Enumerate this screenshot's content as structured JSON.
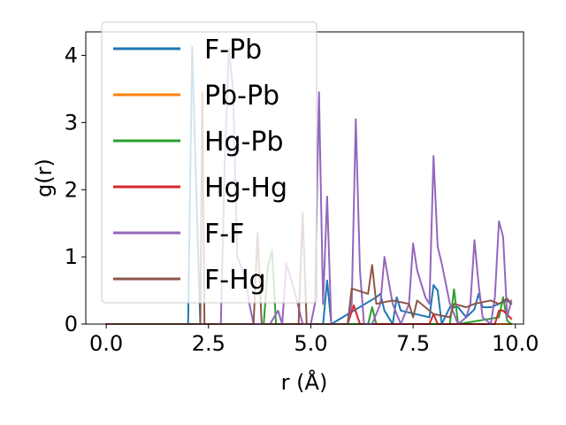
{
  "chart_data": {
    "type": "line",
    "title": "",
    "xlabel": "r (Å)",
    "ylabel": "g(r)",
    "xlim": [
      -0.5,
      10.2
    ],
    "ylim": [
      0,
      4.35
    ],
    "xticks": [
      0.0,
      2.5,
      5.0,
      7.5,
      10.0
    ],
    "xtick_labels": [
      "0.0",
      "2.5",
      "5.0",
      "7.5",
      "10.0"
    ],
    "yticks": [
      0,
      1,
      2,
      3,
      4
    ],
    "ytick_labels": [
      "0",
      "1",
      "2",
      "3",
      "4"
    ],
    "grid": false,
    "legend_position": "top-left",
    "series": [
      {
        "name": "F-Pb",
        "color": "#1f77b4",
        "x": [
          0.0,
          2.0,
          2.1,
          2.2,
          2.3,
          5.3,
          5.4,
          5.5,
          6.6,
          6.7,
          6.8,
          7.0,
          7.1,
          7.2,
          7.9,
          8.0,
          8.1,
          8.2,
          8.4,
          8.6,
          8.8,
          9.0,
          9.1,
          9.2,
          9.4,
          9.6,
          9.8,
          9.9
        ],
        "y": [
          0,
          0,
          4.13,
          2.0,
          0,
          0,
          0.65,
          0,
          0.4,
          0.45,
          0.2,
          0,
          0.4,
          0.2,
          0.1,
          0.58,
          0.5,
          0,
          0.25,
          0.25,
          0.1,
          0.22,
          0.45,
          0.25,
          0.25,
          0.3,
          0.35,
          0.3
        ]
      },
      {
        "name": "Pb-Pb",
        "color": "#ff7f0e",
        "x": [
          0.0,
          9.9
        ],
        "y": [
          0,
          0
        ]
      },
      {
        "name": "Hg-Pb",
        "color": "#2ca02c",
        "x": [
          0.0,
          3.85,
          3.95,
          4.05,
          4.15,
          6.4,
          6.5,
          6.6,
          8.4,
          8.5,
          8.6,
          9.6,
          9.7,
          9.8,
          9.9
        ],
        "y": [
          0,
          0,
          0.85,
          1.1,
          0,
          0,
          0.25,
          0,
          0,
          0.52,
          0,
          0.1,
          0.4,
          0.05,
          0
        ]
      },
      {
        "name": "Hg-Hg",
        "color": "#d62728",
        "x": [
          0.0,
          5.9,
          6.05,
          6.2,
          7.9,
          8.0,
          8.1,
          9.5,
          9.6,
          9.7,
          9.9
        ],
        "y": [
          0,
          0,
          0.28,
          0,
          0,
          0.15,
          0,
          0,
          0.2,
          0.2,
          0.08
        ]
      },
      {
        "name": "F-F",
        "color": "#9467bd",
        "x": [
          0.0,
          2.8,
          2.9,
          3.0,
          3.1,
          3.2,
          3.4,
          3.5,
          3.6,
          3.8,
          4.0,
          4.2,
          4.3,
          4.4,
          4.6,
          4.8,
          5.0,
          5.1,
          5.2,
          5.3,
          5.4,
          5.5,
          5.6,
          5.7,
          5.8,
          5.9,
          6.0,
          6.1,
          6.2,
          6.3,
          6.5,
          6.7,
          6.8,
          7.0,
          7.2,
          7.4,
          7.5,
          7.6,
          7.8,
          7.9,
          8.0,
          8.1,
          8.2,
          8.4,
          8.6,
          8.8,
          8.9,
          9.0,
          9.1,
          9.2,
          9.4,
          9.5,
          9.6,
          9.7,
          9.8,
          9.9
        ],
        "y": [
          0,
          0,
          2.5,
          4.1,
          3.5,
          1.0,
          0.7,
          0.3,
          0,
          0,
          0,
          0.2,
          0,
          0.9,
          0.5,
          0,
          0,
          0.3,
          3.45,
          0.3,
          1.9,
          0,
          0,
          0,
          0,
          0,
          0.3,
          3.05,
          0.8,
          0,
          0,
          0.3,
          1.0,
          0.3,
          0,
          0.3,
          1.2,
          0.8,
          0.4,
          0.3,
          2.5,
          1.15,
          0.9,
          0.3,
          0,
          0.1,
          0.3,
          1.25,
          0.6,
          0.1,
          0,
          0.4,
          1.53,
          1.3,
          0.1,
          0.35
        ]
      },
      {
        "name": "F-Hg",
        "color": "#8c564b",
        "x": [
          0.0,
          2.3,
          2.35,
          2.4,
          3.6,
          3.7,
          3.8,
          4.7,
          4.8,
          4.9,
          5.9,
          6.0,
          6.4,
          6.5,
          6.6,
          7.0,
          7.4,
          7.5,
          7.6,
          8.0,
          8.4,
          8.5,
          8.8,
          9.0,
          9.4,
          9.6,
          9.8,
          9.9
        ],
        "y": [
          0,
          0,
          3.45,
          0,
          0,
          1.35,
          0,
          0,
          1.65,
          0,
          0,
          0.53,
          0.45,
          0.88,
          0.3,
          0.35,
          0.3,
          0.1,
          0.35,
          0.15,
          0.1,
          0.3,
          0.25,
          0.3,
          0.35,
          0.3,
          0.38,
          0.3
        ]
      }
    ]
  }
}
